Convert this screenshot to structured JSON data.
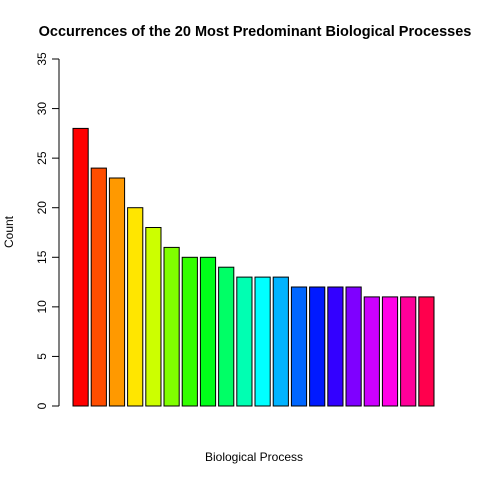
{
  "chart_data": {
    "type": "bar",
    "title": "Occurrences of the 20 Most Predominant Biological Processes",
    "xlabel": "Biological Process",
    "ylabel": "Count",
    "ylim": [
      0,
      35
    ],
    "yticks": [
      0,
      5,
      10,
      15,
      20,
      25,
      30,
      35
    ],
    "grid": false,
    "legend": "none",
    "values": [
      28,
      24,
      23,
      20,
      18,
      16,
      15,
      15,
      14,
      13,
      13,
      13,
      12,
      12,
      12,
      12,
      11,
      11,
      11,
      11
    ],
    "colors": [
      "#FF0000",
      "#FF4D00",
      "#FF9900",
      "#FFE600",
      "#CCFF00",
      "#80FF00",
      "#33FF00",
      "#00FF19",
      "#00FF66",
      "#00FFB2",
      "#00FFFF",
      "#00B3FF",
      "#0066FF",
      "#001AFF",
      "#3300FF",
      "#7F00FF",
      "#CC00FF",
      "#FF00E6",
      "#FF0099",
      "#FF004D"
    ]
  }
}
